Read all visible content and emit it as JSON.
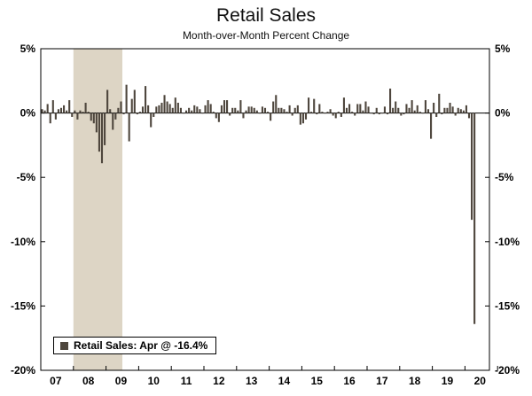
{
  "header": {
    "title": "Retail Sales",
    "subtitle": "Month-over-Month Percent Change"
  },
  "legend": {
    "label": "Retail Sales: Apr @ -16.4%"
  },
  "chart_data": {
    "type": "bar",
    "title": "Retail Sales",
    "subtitle": "Month-over-Month Percent Change",
    "frequency": "monthly",
    "x_start": "2007-01",
    "x_end": "2020-04",
    "axis_total_months": 165,
    "x_tick_labels": [
      "07",
      "08",
      "09",
      "10",
      "11",
      "12",
      "13",
      "14",
      "15",
      "16",
      "17",
      "18",
      "19",
      "20"
    ],
    "ylim": [
      -20,
      5
    ],
    "yticks": [
      5,
      0,
      -5,
      -10,
      -15,
      -20
    ],
    "ytick_labels": [
      "5%",
      "0%",
      "-5%",
      "-10%",
      "-15%",
      "-20%"
    ],
    "grid": false,
    "legend_position": "bottom-left-inside",
    "bar_color": "#4e463d",
    "recession_band": {
      "start_month_index": 12,
      "end_month_index": 30,
      "color": "#ddd5c5"
    },
    "series": [
      {
        "name": "Retail Sales",
        "values": [
          0.3,
          0.2,
          0.7,
          -0.8,
          1.0,
          -0.5,
          0.3,
          0.4,
          0.6,
          0.2,
          1.0,
          -0.3,
          0.2,
          -0.5,
          0.2,
          0.1,
          0.8,
          0.1,
          -0.6,
          -0.8,
          -1.5,
          -3.0,
          -3.9,
          -2.5,
          1.8,
          0.3,
          -1.3,
          -0.5,
          0.4,
          0.9,
          -0.1,
          2.2,
          -2.2,
          1.1,
          1.8,
          -0.1,
          0.1,
          0.5,
          2.1,
          0.6,
          -1.1,
          -0.3,
          0.5,
          0.6,
          0.8,
          1.4,
          0.9,
          0.7,
          0.4,
          1.2,
          0.8,
          0.4,
          0.0,
          0.2,
          0.4,
          0.2,
          0.6,
          0.5,
          0.3,
          0.0,
          0.6,
          1.0,
          0.7,
          0.1,
          -0.4,
          -0.7,
          0.6,
          1.0,
          1.0,
          -0.2,
          0.4,
          0.4,
          0.2,
          1.0,
          -0.4,
          0.2,
          0.5,
          0.5,
          0.4,
          0.2,
          0.0,
          0.5,
          0.4,
          0.1,
          -0.6,
          0.9,
          1.4,
          0.4,
          0.4,
          0.3,
          0.1,
          0.6,
          -0.2,
          0.4,
          0.6,
          -0.9,
          -0.8,
          -0.5,
          1.2,
          0.1,
          1.1,
          -0.1,
          0.7,
          0.1,
          0.0,
          0.1,
          0.3,
          -0.2,
          -0.4,
          0.1,
          -0.3,
          1.2,
          0.4,
          0.7,
          0.1,
          -0.2,
          0.7,
          0.7,
          0.2,
          0.9,
          0.5,
          0.0,
          -0.1,
          0.4,
          -0.1,
          0.0,
          0.5,
          -0.1,
          1.9,
          0.4,
          0.9,
          0.4,
          -0.2,
          -0.1,
          0.7,
          0.4,
          1.0,
          0.2,
          0.6,
          0.1,
          0.0,
          1.0,
          0.3,
          -2.0,
          0.8,
          -0.3,
          1.5,
          -0.1,
          0.4,
          0.4,
          0.8,
          0.5,
          -0.2,
          0.4,
          0.3,
          0.2,
          0.6,
          -0.4,
          -8.3,
          -16.4
        ]
      }
    ]
  }
}
